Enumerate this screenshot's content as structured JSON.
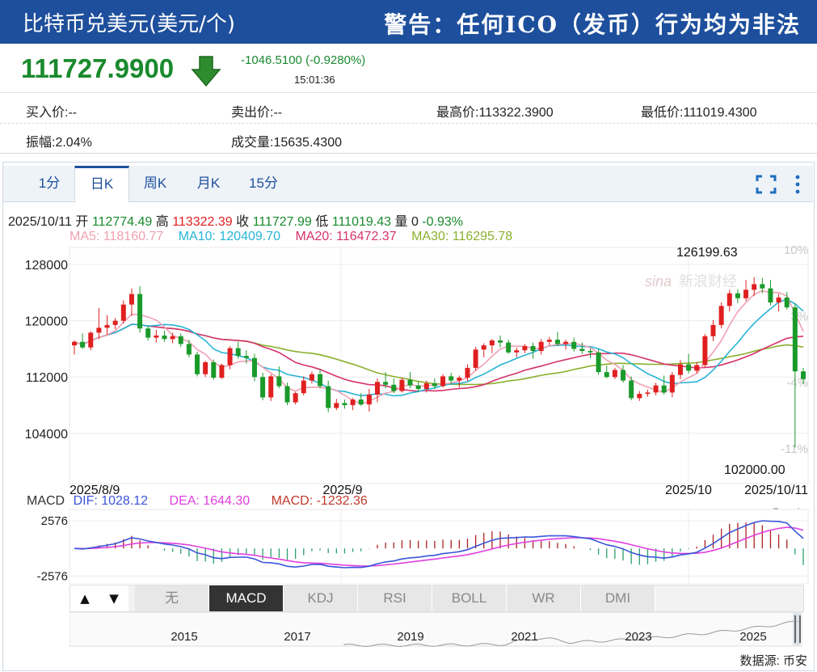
{
  "header": {
    "title": "比特币兑美元(美元/个)",
    "warning": "警告：任何ICO（发币）行为均为非法"
  },
  "quote": {
    "price": "111727.9900",
    "change": "-1046.5100 (-0.9280%)",
    "time": "15:01:36",
    "direction": "down"
  },
  "stats": {
    "bid_label": "买入价:",
    "bid_value": "--",
    "ask_label": "卖出价:",
    "ask_value": "--",
    "high_label": "最高价:",
    "high_value": "113322.3900",
    "low_label": "最低价:",
    "low_value": "111019.4300",
    "amplitude_label": "振幅:",
    "amplitude_value": "2.04%",
    "volume_label": "成交量:",
    "volume_value": "15635.4300"
  },
  "tabs": [
    {
      "label": "1分",
      "active": false
    },
    {
      "label": "日K",
      "active": true
    },
    {
      "label": "周K",
      "active": false
    },
    {
      "label": "月K",
      "active": false
    },
    {
      "label": "15分",
      "active": false
    }
  ],
  "ohlc": {
    "date": "2025/10/11",
    "open_label": "开",
    "open": "112774.49",
    "high_label": "高",
    "high": "113322.39",
    "close_label": "收",
    "close": "111727.99",
    "low_label": "低",
    "low": "111019.43",
    "volume_label": "量",
    "volume": "0",
    "change": "-0.93%"
  },
  "ma_legend": [
    {
      "label": "MA5: 118160.77",
      "color": "#f0a0b4"
    },
    {
      "label": "MA10: 120409.70",
      "color": "#27b4d6"
    },
    {
      "label": "MA20: 116472.37",
      "color": "#d6336c"
    },
    {
      "label": "MA30: 116295.78",
      "color": "#8ab02c"
    }
  ],
  "macd_legend": {
    "name": "MACD",
    "dif": "DIF: 1028.12",
    "dea": "DEA: 1644.30",
    "macd": "MACD: -1232.36",
    "dif_color": "#3a55d8",
    "dea_color": "#e040e0",
    "macd_color": "#c0392b"
  },
  "indicators": {
    "up_arrow": "▲",
    "down_arrow": "▼",
    "items": [
      {
        "label": "无",
        "active": false
      },
      {
        "label": "MACD",
        "active": true
      },
      {
        "label": "KDJ",
        "active": false
      },
      {
        "label": "RSI",
        "active": false
      },
      {
        "label": "BOLL",
        "active": false
      },
      {
        "label": "WR",
        "active": false
      },
      {
        "label": "DMI",
        "active": false
      }
    ]
  },
  "navigator": {
    "years": [
      "2015",
      "2017",
      "2019",
      "2021",
      "2023",
      "2025"
    ]
  },
  "source": "数据源: 币安",
  "colors": {
    "up": "#e02020",
    "down": "#1a9a2a",
    "brand": "#1e4f9c"
  },
  "chart_data": {
    "type": "candlestick",
    "title": "",
    "yticks": [
      128000,
      120000,
      112000,
      104000
    ],
    "ylim": [
      100300,
      129500
    ],
    "right_pct_ticks": [
      "10%",
      "3%",
      "-4%",
      "-11%"
    ],
    "date_labels": [
      "2025/8/9",
      "2025/9",
      "2025/10",
      "2025/10/11"
    ],
    "annotations": {
      "max": "126199.63",
      "min": "102000.00"
    },
    "candles": [
      [
        116500,
        117200,
        115200,
        117000
      ],
      [
        117000,
        118200,
        116000,
        116200
      ],
      [
        116200,
        118500,
        115800,
        118300
      ],
      [
        118300,
        121800,
        117400,
        119000
      ],
      [
        119000,
        120800,
        118000,
        119400
      ],
      [
        119400,
        120400,
        118800,
        120000
      ],
      [
        120000,
        122900,
        119600,
        122300
      ],
      [
        122300,
        124600,
        120700,
        123800
      ],
      [
        123800,
        124900,
        118300,
        118900
      ],
      [
        118900,
        119300,
        117200,
        117600
      ],
      [
        117600,
        118700,
        116900,
        117900
      ],
      [
        117900,
        118600,
        117000,
        117400
      ],
      [
        117400,
        118300,
        116800,
        117800
      ],
      [
        117800,
        118200,
        116300,
        116700
      ],
      [
        116700,
        117300,
        114800,
        115200
      ],
      [
        115200,
        115600,
        112100,
        112400
      ],
      [
        112400,
        114300,
        112000,
        114100
      ],
      [
        114100,
        114500,
        111600,
        111900
      ],
      [
        111900,
        113900,
        111700,
        113700
      ],
      [
        113700,
        116400,
        113100,
        116100
      ],
      [
        116100,
        117000,
        114600,
        115000
      ],
      [
        115000,
        115800,
        113900,
        114700
      ],
      [
        114700,
        115300,
        111400,
        112000
      ],
      [
        112000,
        112600,
        108700,
        109100
      ],
      [
        109100,
        112400,
        108600,
        112100
      ],
      [
        112100,
        113500,
        110400,
        110700
      ],
      [
        110700,
        111200,
        108000,
        108400
      ],
      [
        108400,
        109900,
        108100,
        109700
      ],
      [
        109700,
        112100,
        109400,
        111500
      ],
      [
        111500,
        112800,
        111100,
        112400
      ],
      [
        112400,
        113100,
        110400,
        110700
      ],
      [
        110700,
        111500,
        107000,
        107600
      ],
      [
        107600,
        108900,
        107300,
        108300
      ],
      [
        108300,
        108800,
        107500,
        108000
      ],
      [
        108000,
        109000,
        107300,
        108800
      ],
      [
        108800,
        109700,
        107900,
        108100
      ],
      [
        108100,
        110300,
        107100,
        109500
      ],
      [
        109500,
        111800,
        108400,
        111300
      ],
      [
        111300,
        112700,
        110400,
        110900
      ],
      [
        110900,
        111800,
        109700,
        110000
      ],
      [
        110000,
        111900,
        109800,
        111600
      ],
      [
        111600,
        112700,
        110400,
        110800
      ],
      [
        110800,
        111400,
        109900,
        110300
      ],
      [
        110300,
        111500,
        109800,
        111100
      ],
      [
        111100,
        111800,
        110300,
        110700
      ],
      [
        110700,
        112400,
        110500,
        112100
      ],
      [
        112100,
        112600,
        111000,
        111500
      ],
      [
        111500,
        112200,
        110500,
        111900
      ],
      [
        111900,
        113800,
        111400,
        113300
      ],
      [
        113300,
        116300,
        112900,
        115900
      ],
      [
        115900,
        116800,
        114800,
        116500
      ],
      [
        116500,
        117400,
        115400,
        117200
      ],
      [
        117200,
        117900,
        116200,
        116900
      ],
      [
        116900,
        117300,
        115300,
        115500
      ],
      [
        115500,
        116200,
        114800,
        115800
      ],
      [
        115800,
        116700,
        115400,
        116400
      ],
      [
        116400,
        116900,
        114600,
        115700
      ],
      [
        115700,
        117400,
        115200,
        117000
      ],
      [
        117000,
        117700,
        116500,
        117300
      ],
      [
        117300,
        118400,
        116400,
        116700
      ],
      [
        116700,
        117300,
        115900,
        117000
      ],
      [
        117000,
        117600,
        115600,
        116000
      ],
      [
        116000,
        116900,
        115300,
        115700
      ],
      [
        115700,
        116100,
        114700,
        115500
      ],
      [
        115500,
        116000,
        112300,
        112700
      ],
      [
        112700,
        113600,
        111800,
        112000
      ],
      [
        112000,
        113300,
        111700,
        113000
      ],
      [
        113000,
        113700,
        111200,
        111500
      ],
      [
        111500,
        112100,
        108700,
        109000
      ],
      [
        109000,
        110000,
        108600,
        109600
      ],
      [
        109600,
        110200,
        109200,
        109800
      ],
      [
        109800,
        111200,
        109400,
        110800
      ],
      [
        110800,
        112200,
        109500,
        109800
      ],
      [
        109800,
        112700,
        109100,
        112300
      ],
      [
        112300,
        114400,
        111700,
        113800
      ],
      [
        113800,
        115300,
        112500,
        112900
      ],
      [
        112900,
        114100,
        112500,
        113700
      ],
      [
        113700,
        118100,
        113400,
        117800
      ],
      [
        117800,
        120100,
        117100,
        119400
      ],
      [
        119400,
        122600,
        118900,
        122100
      ],
      [
        122100,
        124400,
        121300,
        123900
      ],
      [
        123900,
        124500,
        122500,
        123200
      ],
      [
        123200,
        125800,
        122800,
        124400
      ],
      [
        124400,
        126200,
        123500,
        125200
      ],
      [
        125200,
        126100,
        123900,
        124600
      ],
      [
        124600,
        125800,
        122200,
        122600
      ],
      [
        122600,
        123800,
        121300,
        123300
      ],
      [
        123300,
        124100,
        121600,
        121900
      ],
      [
        121900,
        122500,
        102000,
        112800
      ],
      [
        112800,
        113300,
        111000,
        111700
      ]
    ],
    "ma": {
      "MA5": "pink",
      "MA10": "cyan",
      "MA20": "crimson",
      "MA30": "olive"
    },
    "macd": {
      "yticks": [
        2576,
        -2576
      ],
      "dif_range": [
        -2700,
        2576
      ],
      "series_note": "DIF, DEA lines with MACD histogram"
    }
  }
}
